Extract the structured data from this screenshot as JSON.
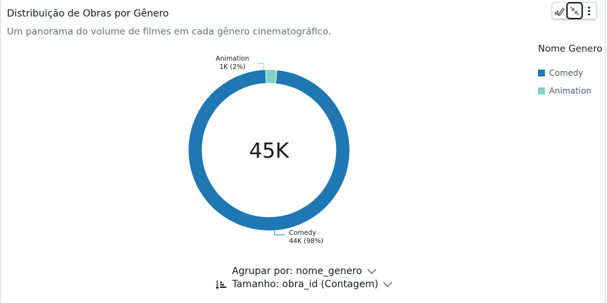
{
  "visual": {
    "title": "Distribuição de Obras por Gênero",
    "subtitle": "Um panorama do volume de filmes em cada gênero cinematográfico.",
    "toolbar": {
      "icons": [
        "chart-pencil-icon",
        "collapse-icon",
        "more-vertical-icon"
      ]
    },
    "group_by_label": "Agrupar por: nome_genero",
    "size_label": "Tamanho: obra_id (Contagem)"
  },
  "legend": {
    "title": "Nome Genero",
    "items": [
      {
        "label": "Comedy",
        "color": "#1f77b4"
      },
      {
        "label": "Animation",
        "color": "#7fd3c0"
      }
    ]
  },
  "chart_data": {
    "type": "pie",
    "variant": "donut",
    "center_label": "45K",
    "slices": [
      {
        "name": "Comedy",
        "value": 44000,
        "value_label": "44K",
        "percent_label": "(98%)",
        "color": "#1f77b4"
      },
      {
        "name": "Animation",
        "value": 1000,
        "value_label": "1K",
        "percent_label": "(2%)",
        "color": "#7fd3c0"
      }
    ],
    "legend_position": "right"
  }
}
